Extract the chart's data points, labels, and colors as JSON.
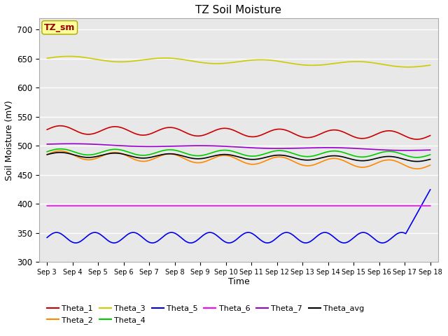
{
  "title": "TZ Soil Moisture",
  "xlabel": "Time",
  "ylabel": "Soil Moisture (mV)",
  "ylim": [
    300,
    720
  ],
  "yticks": [
    300,
    350,
    400,
    450,
    500,
    550,
    600,
    650,
    700
  ],
  "num_days": 15,
  "num_points": 360,
  "background_color": "#e8e8e8",
  "series": {
    "Theta_1": {
      "color": "#cc0000",
      "base": 528,
      "amp": 7,
      "freq": 14,
      "trend": -10
    },
    "Theta_2": {
      "color": "#ff8800",
      "base": 485,
      "amp": 7,
      "freq": 14,
      "trend": -18
    },
    "Theta_3": {
      "color": "#cccc00",
      "base": 651,
      "amp": 4,
      "freq": 8,
      "trend": -12
    },
    "Theta_4": {
      "color": "#00cc00",
      "base": 490,
      "amp": 5,
      "freq": 14,
      "trend": -5
    },
    "Theta_5": {
      "color": "#0000ee",
      "base": 342,
      "amp": 9,
      "freq": 20,
      "trend": 0,
      "spike_at": 0.935,
      "spike_val": 425
    },
    "Theta_6": {
      "color": "#ff00ff",
      "base": 397,
      "amp": 0,
      "freq": 0,
      "trend": 0
    },
    "Theta_7": {
      "color": "#9900cc",
      "base": 503,
      "amp": 1.5,
      "freq": 6,
      "trend": -10
    },
    "Theta_avg": {
      "color": "#000000",
      "base": 485,
      "amp": 4,
      "freq": 14,
      "trend": -8
    }
  },
  "legend_order": [
    "Theta_1",
    "Theta_2",
    "Theta_3",
    "Theta_4",
    "Theta_5",
    "Theta_6",
    "Theta_7",
    "Theta_avg"
  ],
  "legend_box_text": "TZ_sm",
  "legend_box_fg": "#990000",
  "legend_box_bg": "#ffff99",
  "legend_box_edge": "#aaaa00"
}
